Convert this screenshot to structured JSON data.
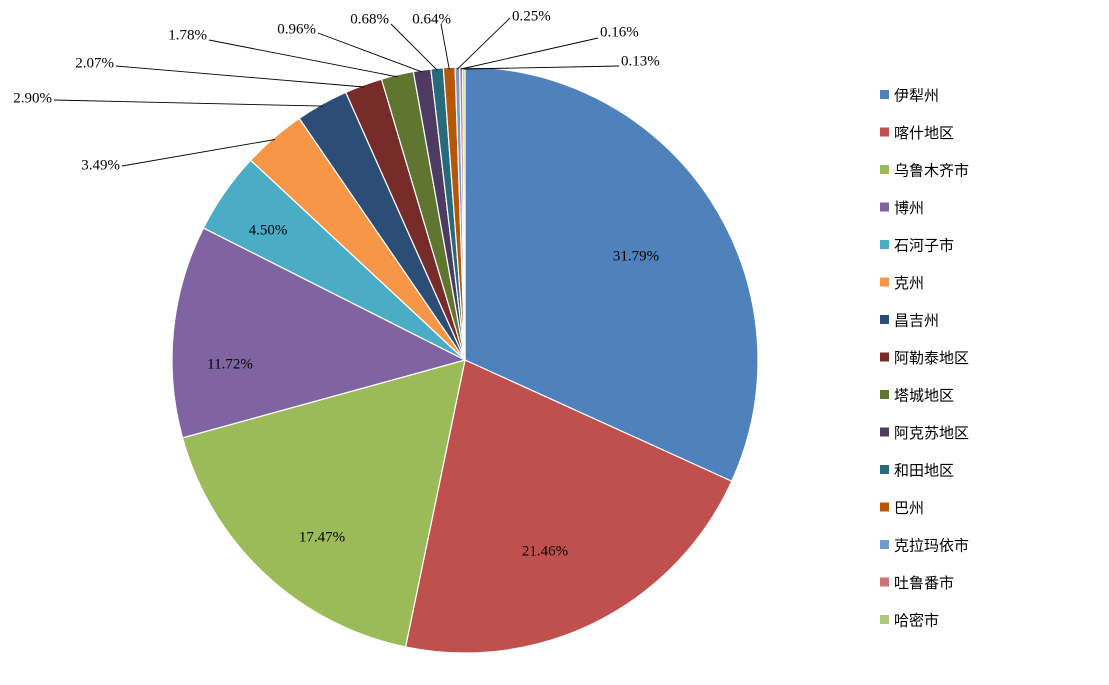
{
  "chart_data": {
    "type": "pie",
    "start_angle": "12 o'clock, clockwise",
    "legend_position": "right",
    "slices": [
      {
        "name": "伊犁州",
        "value": 31.79,
        "label": "31.79%",
        "color": "#4F81BD"
      },
      {
        "name": "喀什地区",
        "value": 21.46,
        "label": "21.46%",
        "color": "#C0504D"
      },
      {
        "name": "乌鲁木齐市",
        "value": 17.47,
        "label": "17.47%",
        "color": "#9BBB59"
      },
      {
        "name": "博州",
        "value": 11.72,
        "label": "11.72%",
        "color": "#8064A2"
      },
      {
        "name": "石河子市",
        "value": 4.5,
        "label": "4.50%",
        "color": "#4BACC6"
      },
      {
        "name": "克州",
        "value": 3.49,
        "label": "3.49%",
        "color": "#F79646"
      },
      {
        "name": "昌吉州",
        "value": 2.9,
        "label": "2.90%",
        "color": "#2C4D75"
      },
      {
        "name": "阿勒泰地区",
        "value": 2.07,
        "label": "2.07%",
        "color": "#772C2A"
      },
      {
        "name": "塔城地区",
        "value": 1.78,
        "label": "1.78%",
        "color": "#5F7530"
      },
      {
        "name": "阿克苏地区",
        "value": 0.96,
        "label": "0.96%",
        "color": "#4D3B62"
      },
      {
        "name": "和田地区",
        "value": 0.68,
        "label": "0.68%",
        "color": "#276A7C"
      },
      {
        "name": "巴州",
        "value": 0.64,
        "label": "0.64%",
        "color": "#B65708"
      },
      {
        "name": "克拉玛依市",
        "value": 0.25,
        "label": "0.25%",
        "color": "#729ACA"
      },
      {
        "name": "吐鲁番市",
        "value": 0.16,
        "label": "0.16%",
        "color": "#CD7371"
      },
      {
        "name": "哈密市",
        "value": 0.13,
        "label": "0.13%",
        "color": "#AFC97A"
      }
    ]
  }
}
